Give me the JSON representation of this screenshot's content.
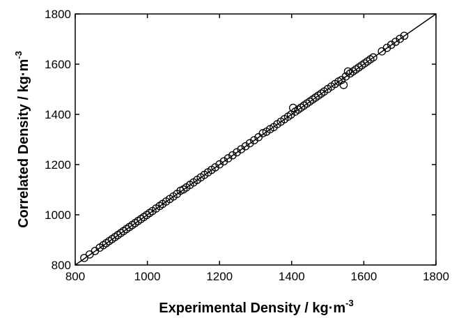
{
  "chart_data": {
    "type": "scatter",
    "xlabel": "Experimental Density / kg·m",
    "xlabel_sup": "-3",
    "ylabel": "Correlated Density / kg·m",
    "ylabel_sup": "-3",
    "xlim": [
      800,
      1800
    ],
    "ylim": [
      800,
      1800
    ],
    "xticks": [
      800,
      1000,
      1200,
      1400,
      1600,
      1800
    ],
    "yticks": [
      800,
      1000,
      1200,
      1400,
      1600,
      1800
    ],
    "xtick_labels": [
      "800",
      "1000",
      "1200",
      "1400",
      "1600",
      "1800"
    ],
    "ytick_labels": [
      "800",
      "1000",
      "1200",
      "1400",
      "1600",
      "1800"
    ],
    "grid": false,
    "reference_line": {
      "from": [
        800,
        800
      ],
      "to": [
        1800,
        1800
      ]
    },
    "marker": "open-circle",
    "colors": {
      "axis": "#000000",
      "marker": "#000000",
      "line": "#000000"
    },
    "series": [
      {
        "x": [
          825,
          840,
          855,
          868,
          878,
          886,
          894,
          902,
          910,
          918,
          926,
          934,
          942,
          950,
          958,
          966,
          974,
          982,
          990,
          998,
          1006,
          1014,
          1024,
          1034,
          1042,
          1052,
          1062,
          1072,
          1082,
          1092,
          1100,
          1108,
          1118,
          1128,
          1138,
          1148,
          1158,
          1168,
          1178,
          1188,
          1200,
          1212,
          1224,
          1236,
          1248,
          1260,
          1272,
          1284,
          1296,
          1308,
          1320,
          1330,
          1340,
          1350,
          1360,
          1370,
          1380,
          1390,
          1398,
          1404,
          1410,
          1418,
          1426,
          1434,
          1442,
          1450,
          1458,
          1466,
          1474,
          1482,
          1490,
          1500,
          1510,
          1520,
          1530,
          1538,
          1544,
          1550,
          1556,
          1562,
          1570,
          1578,
          1586,
          1594,
          1602,
          1610,
          1618,
          1626,
          1650,
          1664,
          1676,
          1688,
          1700,
          1712
        ],
        "y": [
          828,
          842,
          856,
          869,
          879,
          887,
          895,
          903,
          911,
          919,
          927,
          935,
          943,
          951,
          959,
          967,
          975,
          983,
          991,
          999,
          1007,
          1015,
          1025,
          1035,
          1043,
          1053,
          1063,
          1073,
          1083,
          1096,
          1101,
          1109,
          1119,
          1129,
          1139,
          1149,
          1159,
          1169,
          1179,
          1189,
          1201,
          1213,
          1225,
          1237,
          1249,
          1261,
          1273,
          1285,
          1297,
          1309,
          1325,
          1331,
          1341,
          1349,
          1361,
          1371,
          1381,
          1391,
          1399,
          1426,
          1411,
          1419,
          1427,
          1435,
          1443,
          1451,
          1459,
          1467,
          1475,
          1483,
          1491,
          1501,
          1511,
          1521,
          1531,
          1537,
          1517,
          1551,
          1571,
          1563,
          1571,
          1579,
          1587,
          1595,
          1603,
          1611,
          1619,
          1627,
          1651,
          1665,
          1677,
          1689,
          1701,
          1713
        ]
      }
    ]
  }
}
